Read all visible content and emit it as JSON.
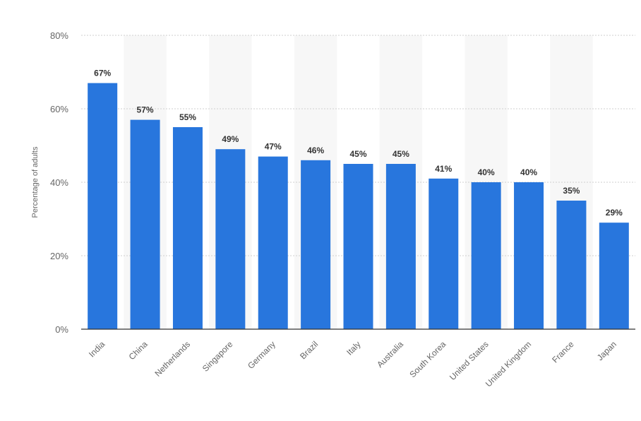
{
  "chart_data": {
    "type": "bar",
    "title": "",
    "xlabel": "",
    "ylabel": "Percentage of adults",
    "ylim": [
      0,
      80
    ],
    "yticks": [
      0,
      20,
      40,
      60,
      80
    ],
    "ytick_labels": [
      "0%",
      "20%",
      "40%",
      "60%",
      "80%"
    ],
    "grid": true,
    "categories": [
      "India",
      "China",
      "Netherlands",
      "Singapore",
      "Germany",
      "Brazil",
      "Italy",
      "Australia",
      "South Korea",
      "United States",
      "United Kingdom",
      "France",
      "Japan"
    ],
    "values": [
      67,
      57,
      55,
      49,
      47,
      46,
      45,
      45,
      41,
      40,
      40,
      35,
      29
    ],
    "value_labels": [
      "67%",
      "57%",
      "55%",
      "49%",
      "47%",
      "46%",
      "45%",
      "45%",
      "41%",
      "40%",
      "40%",
      "35%",
      "29%"
    ],
    "bar_color": "#2876dd",
    "band_color": "#f7f7f7",
    "grid_color": "#cfcfcf",
    "axis_color": "#333333"
  }
}
